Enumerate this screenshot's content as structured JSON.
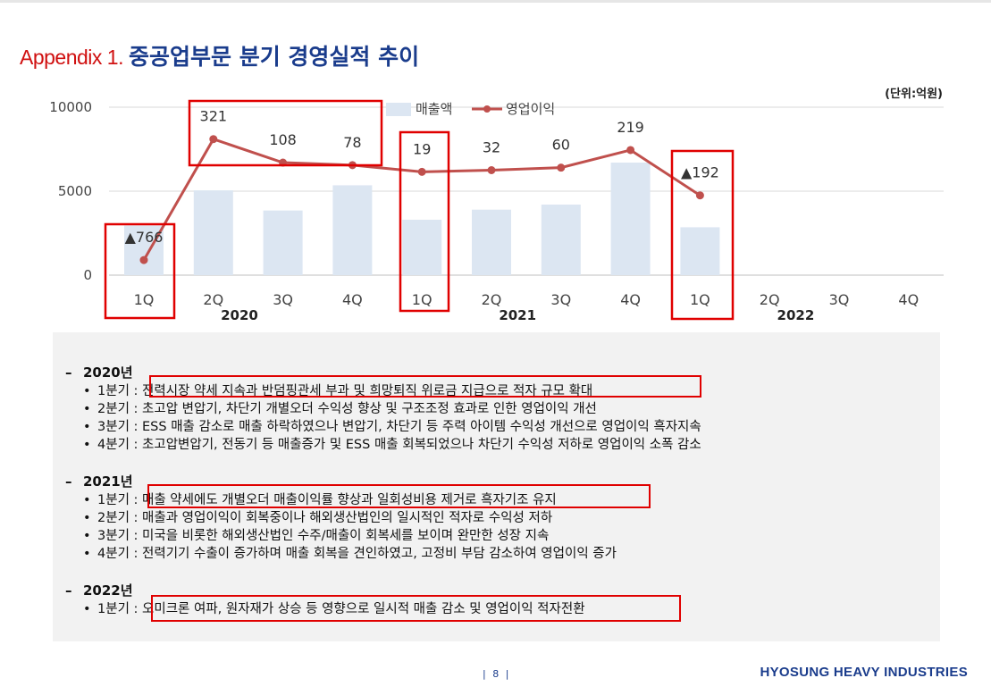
{
  "header": {
    "title_prefix": "Appendix 1.",
    "title_main": "중공업부문 분기 경영실적 추이",
    "unit": "(단위:억원)"
  },
  "chart_data": {
    "type": "bar",
    "legend": {
      "bar": "매출액",
      "line": "영업이익",
      "position": "top"
    },
    "categories": [
      "1Q",
      "2Q",
      "3Q",
      "4Q",
      "1Q",
      "2Q",
      "3Q",
      "4Q",
      "1Q",
      "2Q",
      "3Q",
      "4Q"
    ],
    "years": [
      "2020",
      "2021",
      "2022"
    ],
    "ylim": [
      0,
      10000
    ],
    "yticks": [
      "10000",
      "5000",
      "0"
    ],
    "series": [
      {
        "name": "매출액",
        "type": "bar",
        "color": "#dce6f2",
        "values": [
          2950,
          5050,
          3850,
          5350,
          3300,
          3900,
          4200,
          6700,
          2850,
          null,
          null,
          null
        ]
      },
      {
        "name": "영업이익",
        "type": "line",
        "color": "#c0504d",
        "values": [
          900,
          8100,
          6700,
          6550,
          6150,
          6250,
          6400,
          7450,
          4750,
          null,
          null,
          null
        ]
      }
    ],
    "data_labels": [
      "▲766",
      "321",
      "108",
      "78",
      "19",
      "32",
      "60",
      "219",
      "▲192"
    ],
    "highlighted_quarters": [
      0,
      1,
      2,
      3,
      4,
      8
    ]
  },
  "notes": [
    {
      "year": "2020년",
      "items": [
        {
          "q": "1분기 :",
          "text": "전력시장 약세 지속과 반덤핑관세 부과 및 희망퇴직 위로금 지급으로 적자 규모 확대"
        },
        {
          "q": "2분기 :",
          "text": "초고압 변압기, 차단기 개별오더 수익성 향상 및 구조조정 효과로 인한 영업이익 개선"
        },
        {
          "q": "3분기 :",
          "text": "ESS 매출 감소로 매출 하락하였으나 변압기, 차단기 등 주력 아이템 수익성 개선으로 영업이익 흑자지속"
        },
        {
          "q": "4분기 :",
          "text": "초고압변압기, 전동기 등 매출증가 및 ESS 매출 회복되었으나 차단기 수익성 저하로 영업이익 소폭 감소"
        }
      ]
    },
    {
      "year": "2021년",
      "items": [
        {
          "q": "1분기 :",
          "text": "매출 약세에도 개별오더 매출이익률 향상과 일회성비용 제거로 흑자기조 유지"
        },
        {
          "q": "2분기 :",
          "text": "매출과 영업이익이 회복중이나 해외생산법인의 일시적인 적자로 수익성 저하"
        },
        {
          "q": "3분기 :",
          "text": "미국을 비롯한 해외생산법인 수주/매출이 회복세를 보이며 완만한 성장 지속"
        },
        {
          "q": "4분기 :",
          "text": "전력기기 수출이 증가하며 매출 회복을 견인하였고, 고정비 부담 감소하여 영업이익 증가"
        }
      ]
    },
    {
      "year": "2022년",
      "items": [
        {
          "q": "1분기 :",
          "text": "오미크론 여파, 원자재가 상승 등 영향으로 일시적 매출 감소 및 영업이익 적자전환"
        }
      ]
    }
  ],
  "footer": {
    "page": "| 8 |",
    "brand": "HYOSUNG HEAVY INDUSTRIES"
  }
}
